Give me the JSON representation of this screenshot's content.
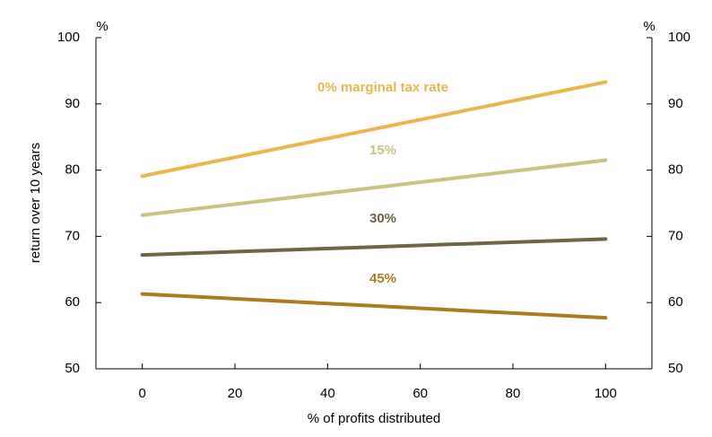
{
  "chart_data": {
    "type": "line",
    "x": [
      0,
      100
    ],
    "series": [
      {
        "name": "0% marginal tax rate",
        "color": "#e8b84f",
        "values": [
          79.1,
          93.3
        ]
      },
      {
        "name": "15%",
        "color": "#c9c383",
        "values": [
          73.2,
          81.5
        ]
      },
      {
        "name": "30%",
        "color": "#6e6446",
        "values": [
          67.2,
          69.6
        ]
      },
      {
        "name": "45%",
        "color": "#a97d1f",
        "values": [
          61.3,
          57.7
        ]
      }
    ],
    "xlim": [
      -10,
      110
    ],
    "xticks": [
      0,
      20,
      40,
      60,
      80,
      100
    ],
    "ylim": [
      50,
      100
    ],
    "yticks": [
      50,
      60,
      70,
      80,
      90,
      100
    ],
    "y2lim": [
      50,
      100
    ],
    "y2ticks": [
      50,
      60,
      70,
      80,
      90,
      100
    ],
    "ylabel": "return over 10 years",
    "xlabel": "% of profits distributed",
    "yunit": "%",
    "y2unit": "%"
  }
}
